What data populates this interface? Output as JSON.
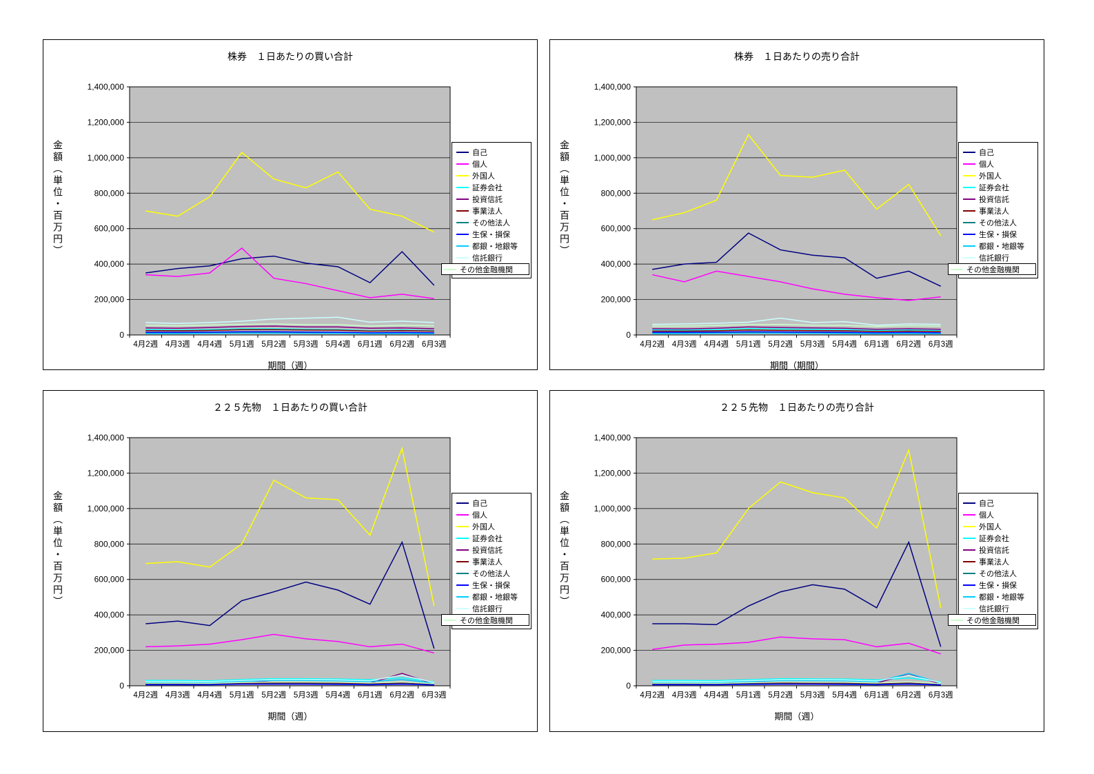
{
  "page": {
    "background": "#FFFFFF",
    "plot_background": "#C0C0C0"
  },
  "chart_data": [
    {
      "type": "line",
      "title": "株券　１日あたりの買い合計",
      "xlabel": "期間（週）",
      "ylabel": "金額（単位・百万円）",
      "ylim": [
        0,
        1400000
      ],
      "ytick_step": 200000,
      "plot_bg": "#C0C0C0",
      "grid": "horizontal",
      "legend_position": "right",
      "categories": [
        "4月2週",
        "4月3週",
        "4月4週",
        "5月1週",
        "5月2週",
        "5月3週",
        "5月4週",
        "6月1週",
        "6月2週",
        "6月3週"
      ],
      "series": [
        {
          "name": "自己",
          "color": "#000080",
          "values": [
            350000,
            375000,
            390000,
            430000,
            445000,
            405000,
            385000,
            295000,
            470000,
            280000
          ]
        },
        {
          "name": "個人",
          "color": "#FF00FF",
          "values": [
            340000,
            330000,
            350000,
            490000,
            320000,
            290000,
            250000,
            210000,
            230000,
            205000
          ]
        },
        {
          "name": "外国人",
          "color": "#FFFF00",
          "values": [
            700000,
            670000,
            780000,
            1030000,
            880000,
            830000,
            920000,
            710000,
            670000,
            580000
          ]
        },
        {
          "name": "証券会社",
          "color": "#00FFFF",
          "values": [
            30000,
            28000,
            30000,
            35000,
            35000,
            32000,
            30000,
            25000,
            28000,
            25000
          ]
        },
        {
          "name": "投資信託",
          "color": "#800080",
          "values": [
            40000,
            38000,
            42000,
            48000,
            50000,
            45000,
            45000,
            38000,
            40000,
            35000
          ]
        },
        {
          "name": "事業法人",
          "color": "#800000",
          "values": [
            25000,
            24000,
            26000,
            30000,
            30000,
            28000,
            27000,
            22000,
            25000,
            22000
          ]
        },
        {
          "name": "その他法人",
          "color": "#008080",
          "values": [
            12000,
            12000,
            12000,
            15000,
            15000,
            13000,
            13000,
            10000,
            12000,
            10000
          ]
        },
        {
          "name": "生保・損保",
          "color": "#0000FF",
          "values": [
            15000,
            15000,
            16000,
            18000,
            18000,
            16000,
            15000,
            12000,
            14000,
            12000
          ]
        },
        {
          "name": "都銀・地銀等",
          "color": "#00CCFF",
          "values": [
            8000,
            8000,
            9000,
            10000,
            10000,
            9000,
            9000,
            7000,
            8000,
            7000
          ]
        },
        {
          "name": "信託銀行",
          "color": "#CCFFFF",
          "values": [
            70000,
            65000,
            70000,
            78000,
            90000,
            95000,
            100000,
            72000,
            78000,
            70000
          ]
        },
        {
          "name": "その他金融機関",
          "color": "#CCFFCC",
          "values": [
            55000,
            52000,
            56000,
            60000,
            62000,
            58000,
            58000,
            50000,
            55000,
            52000
          ]
        }
      ]
    },
    {
      "type": "line",
      "title": "株券　１日あたりの売り合計",
      "xlabel": "期間（期間）",
      "ylabel": "金額（単位・百万円）",
      "ylim": [
        0,
        1400000
      ],
      "ytick_step": 200000,
      "plot_bg": "#C0C0C0",
      "grid": "horizontal",
      "legend_position": "right",
      "categories": [
        "4月2週",
        "4月3週",
        "4月4週",
        "5月1週",
        "5月2週",
        "5月3週",
        "5月4週",
        "6月1週",
        "6月2週",
        "6月3週"
      ],
      "series": [
        {
          "name": "自己",
          "color": "#000080",
          "values": [
            370000,
            400000,
            410000,
            575000,
            480000,
            450000,
            435000,
            320000,
            360000,
            275000
          ]
        },
        {
          "name": "個人",
          "color": "#FF00FF",
          "values": [
            340000,
            300000,
            360000,
            330000,
            300000,
            260000,
            230000,
            210000,
            195000,
            215000
          ]
        },
        {
          "name": "外国人",
          "color": "#FFFF00",
          "values": [
            650000,
            690000,
            760000,
            1130000,
            900000,
            890000,
            930000,
            710000,
            850000,
            560000
          ]
        },
        {
          "name": "証券会社",
          "color": "#00FFFF",
          "values": [
            30000,
            28000,
            30000,
            36000,
            34000,
            32000,
            30000,
            25000,
            28000,
            25000
          ]
        },
        {
          "name": "投資信託",
          "color": "#800080",
          "values": [
            35000,
            34000,
            38000,
            45000,
            42000,
            40000,
            38000,
            32000,
            35000,
            32000
          ]
        },
        {
          "name": "事業法人",
          "color": "#800000",
          "values": [
            22000,
            22000,
            24000,
            28000,
            26000,
            25000,
            24000,
            20000,
            22000,
            20000
          ]
        },
        {
          "name": "その他法人",
          "color": "#008080",
          "values": [
            12000,
            12000,
            12000,
            15000,
            14000,
            13000,
            12000,
            10000,
            11000,
            10000
          ]
        },
        {
          "name": "生保・損保",
          "color": "#0000FF",
          "values": [
            15000,
            15000,
            16000,
            18000,
            17000,
            16000,
            15000,
            12000,
            14000,
            12000
          ]
        },
        {
          "name": "都銀・地銀等",
          "color": "#00CCFF",
          "values": [
            8000,
            8000,
            9000,
            10000,
            10000,
            9000,
            8000,
            7000,
            8000,
            7000
          ]
        },
        {
          "name": "信託銀行",
          "color": "#CCFFFF",
          "values": [
            60000,
            62000,
            66000,
            72000,
            95000,
            70000,
            75000,
            55000,
            62000,
            60000
          ]
        },
        {
          "name": "その他金融機関",
          "color": "#CCFFCC",
          "values": [
            50000,
            50000,
            54000,
            58000,
            60000,
            55000,
            54000,
            48000,
            52000,
            50000
          ]
        }
      ]
    },
    {
      "type": "line",
      "title": "２２５先物　１日あたりの買い合計",
      "xlabel": "期間（週）",
      "ylabel": "金額（単位・百万円）",
      "ylim": [
        0,
        1400000
      ],
      "ytick_step": 200000,
      "plot_bg": "#C0C0C0",
      "grid": "horizontal",
      "legend_position": "right",
      "categories": [
        "4月2週",
        "4月3週",
        "4月4週",
        "5月1週",
        "5月2週",
        "5月3週",
        "5月4週",
        "6月1週",
        "6月2週",
        "6月3週"
      ],
      "series": [
        {
          "name": "自己",
          "color": "#000080",
          "values": [
            350000,
            365000,
            340000,
            480000,
            530000,
            585000,
            540000,
            460000,
            810000,
            210000
          ]
        },
        {
          "name": "個人",
          "color": "#FF00FF",
          "values": [
            220000,
            225000,
            235000,
            260000,
            290000,
            265000,
            250000,
            220000,
            235000,
            185000
          ]
        },
        {
          "name": "外国人",
          "color": "#FFFF00",
          "values": [
            690000,
            700000,
            670000,
            800000,
            1160000,
            1060000,
            1050000,
            850000,
            1340000,
            450000
          ]
        },
        {
          "name": "証券会社",
          "color": "#00FFFF",
          "values": [
            30000,
            30000,
            28000,
            35000,
            40000,
            40000,
            38000,
            34000,
            45000,
            22000
          ]
        },
        {
          "name": "投資信託",
          "color": "#800080",
          "values": [
            15000,
            15000,
            14000,
            30000,
            20000,
            20000,
            18000,
            15000,
            70000,
            10000
          ]
        },
        {
          "name": "事業法人",
          "color": "#800000",
          "values": [
            10000,
            10000,
            10000,
            14000,
            15000,
            15000,
            14000,
            11000,
            15000,
            8000
          ]
        },
        {
          "name": "その他法人",
          "color": "#008080",
          "values": [
            8000,
            8000,
            8000,
            10000,
            11000,
            11000,
            10000,
            8000,
            11000,
            6000
          ]
        },
        {
          "name": "生保・損保",
          "color": "#0000FF",
          "values": [
            6000,
            6000,
            6000,
            9000,
            9000,
            9000,
            8000,
            6000,
            9000,
            5000
          ]
        },
        {
          "name": "都銀・地銀等",
          "color": "#00CCFF",
          "values": [
            20000,
            20000,
            19000,
            25000,
            30000,
            30000,
            28000,
            24000,
            35000,
            15000
          ]
        },
        {
          "name": "信託銀行",
          "color": "#CCFFFF",
          "values": [
            25000,
            25000,
            24000,
            30000,
            35000,
            35000,
            33000,
            28000,
            60000,
            18000
          ]
        },
        {
          "name": "その他金融機関",
          "color": "#CCFFCC",
          "values": [
            15000,
            15000,
            14000,
            19000,
            21000,
            21000,
            20000,
            16000,
            22000,
            12000
          ]
        }
      ]
    },
    {
      "type": "line",
      "title": "２２５先物　１日あたりの売り合計",
      "xlabel": "期間（週）",
      "ylabel": "金額（単位・百万円）",
      "ylim": [
        0,
        1400000
      ],
      "ytick_step": 200000,
      "plot_bg": "#C0C0C0",
      "grid": "horizontal",
      "legend_position": "right",
      "categories": [
        "4月2週",
        "4月3週",
        "4月4週",
        "5月1週",
        "5月2週",
        "5月3週",
        "5月4週",
        "6月1週",
        "6月2週",
        "6月3週"
      ],
      "series": [
        {
          "name": "自己",
          "color": "#000080",
          "values": [
            350000,
            350000,
            345000,
            450000,
            530000,
            570000,
            545000,
            440000,
            810000,
            220000
          ]
        },
        {
          "name": "個人",
          "color": "#FF00FF",
          "values": [
            205000,
            230000,
            235000,
            245000,
            275000,
            265000,
            260000,
            220000,
            240000,
            180000
          ]
        },
        {
          "name": "外国人",
          "color": "#FFFF00",
          "values": [
            715000,
            720000,
            750000,
            1000000,
            1150000,
            1090000,
            1060000,
            890000,
            1330000,
            440000
          ]
        },
        {
          "name": "証券会社",
          "color": "#00FFFF",
          "values": [
            30000,
            30000,
            29000,
            34000,
            40000,
            39000,
            38000,
            33000,
            44000,
            22000
          ]
        },
        {
          "name": "投資信託",
          "color": "#800080",
          "values": [
            15000,
            15000,
            14000,
            22000,
            20000,
            19000,
            18000,
            15000,
            68000,
            10000
          ]
        },
        {
          "name": "事業法人",
          "color": "#800000",
          "values": [
            10000,
            10000,
            10000,
            13000,
            15000,
            14000,
            14000,
            11000,
            15000,
            8000
          ]
        },
        {
          "name": "その他法人",
          "color": "#008080",
          "values": [
            8000,
            8000,
            8000,
            10000,
            11000,
            10000,
            10000,
            8000,
            11000,
            6000
          ]
        },
        {
          "name": "生保・損保",
          "color": "#0000FF",
          "values": [
            6000,
            6000,
            6000,
            8000,
            9000,
            9000,
            8000,
            6000,
            9000,
            5000
          ]
        },
        {
          "name": "都銀・地銀等",
          "color": "#00CCFF",
          "values": [
            20000,
            20000,
            19000,
            24000,
            29000,
            29000,
            28000,
            23000,
            70000,
            15000
          ]
        },
        {
          "name": "信託銀行",
          "color": "#CCFFFF",
          "values": [
            25000,
            25000,
            24000,
            29000,
            34000,
            34000,
            33000,
            27000,
            58000,
            18000
          ]
        },
        {
          "name": "その他金融機関",
          "color": "#CCFFCC",
          "values": [
            15000,
            15000,
            14000,
            18000,
            21000,
            20000,
            20000,
            16000,
            22000,
            12000
          ]
        }
      ]
    }
  ]
}
